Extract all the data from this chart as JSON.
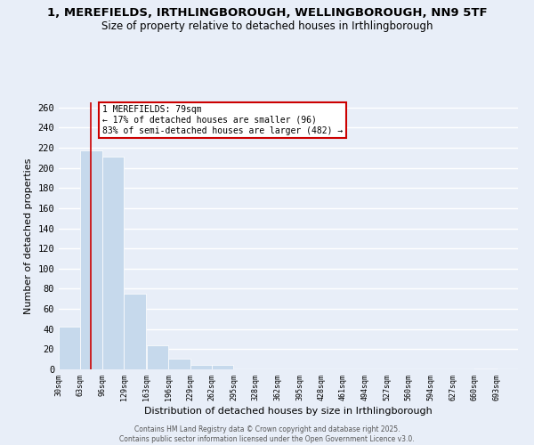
{
  "title": "1, MEREFIELDS, IRTHLINGBOROUGH, WELLINGBOROUGH, NN9 5TF",
  "subtitle": "Size of property relative to detached houses in Irthlingborough",
  "xlabel": "Distribution of detached houses by size in Irthlingborough",
  "ylabel": "Number of detached properties",
  "bins": [
    30,
    63,
    96,
    129,
    163,
    196,
    229,
    262,
    295,
    328,
    362,
    395,
    428,
    461,
    494,
    527,
    560,
    594,
    627,
    660,
    693
  ],
  "counts": [
    42,
    217,
    211,
    75,
    24,
    11,
    4,
    4,
    0,
    0,
    0,
    0,
    0,
    0,
    0,
    0,
    0,
    0,
    0,
    1
  ],
  "bar_color": "#c6d9ec",
  "property_line_x": 79,
  "property_line_color": "#cc0000",
  "annotation_line1": "1 MEREFIELDS: 79sqm",
  "annotation_line2": "← 17% of detached houses are smaller (96)",
  "annotation_line3": "83% of semi-detached houses are larger (482) →",
  "annotation_box_color": "#ffffff",
  "annotation_box_edge_color": "#cc0000",
  "ylim": [
    0,
    265
  ],
  "yticks": [
    0,
    20,
    40,
    60,
    80,
    100,
    120,
    140,
    160,
    180,
    200,
    220,
    240,
    260
  ],
  "tick_labels": [
    "30sqm",
    "63sqm",
    "96sqm",
    "129sqm",
    "163sqm",
    "196sqm",
    "229sqm",
    "262sqm",
    "295sqm",
    "328sqm",
    "362sqm",
    "395sqm",
    "428sqm",
    "461sqm",
    "494sqm",
    "527sqm",
    "560sqm",
    "594sqm",
    "627sqm",
    "660sqm",
    "693sqm"
  ],
  "footer_line1": "Contains HM Land Registry data © Crown copyright and database right 2025.",
  "footer_line2": "Contains public sector information licensed under the Open Government Licence v3.0.",
  "bg_color": "#e8eef8",
  "grid_color": "#ffffff"
}
